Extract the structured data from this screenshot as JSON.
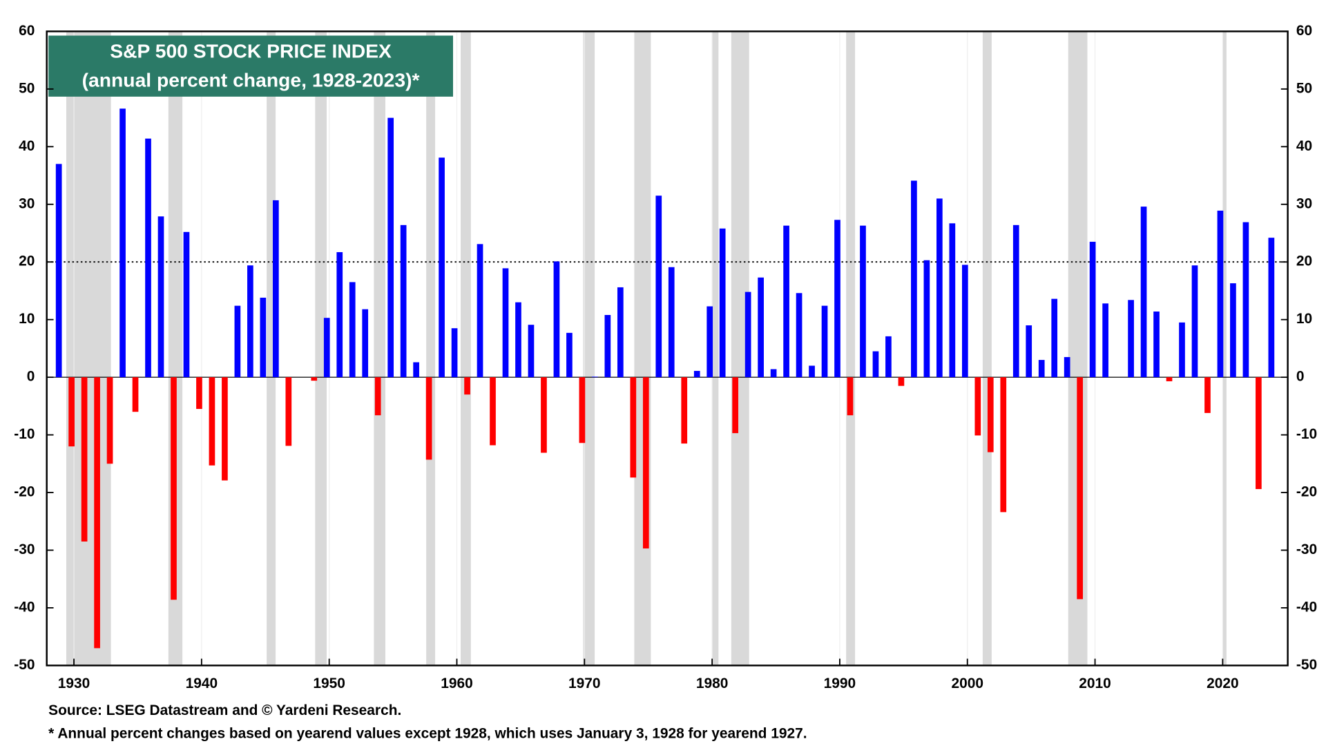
{
  "chart_data": {
    "type": "bar",
    "title": "S&P 500 STOCK PRICE INDEX",
    "subtitle": "(annual percent change, 1928-2023)*",
    "source": "Source: LSEG Datastream and © Yardeni Research.",
    "note": "* Annual percent changes based on yearend values except 1928, which uses January 3, 1928 for yearend 1927.",
    "x": [
      1928,
      1929,
      1930,
      1931,
      1932,
      1933,
      1934,
      1935,
      1936,
      1937,
      1938,
      1939,
      1940,
      1941,
      1942,
      1943,
      1944,
      1945,
      1946,
      1947,
      1948,
      1949,
      1950,
      1951,
      1952,
      1953,
      1954,
      1955,
      1956,
      1957,
      1958,
      1959,
      1960,
      1961,
      1962,
      1963,
      1964,
      1965,
      1966,
      1967,
      1968,
      1969,
      1970,
      1971,
      1972,
      1973,
      1974,
      1975,
      1976,
      1977,
      1978,
      1979,
      1980,
      1981,
      1982,
      1983,
      1984,
      1985,
      1986,
      1987,
      1988,
      1989,
      1990,
      1991,
      1992,
      1993,
      1994,
      1995,
      1996,
      1997,
      1998,
      1999,
      2000,
      2001,
      2002,
      2003,
      2004,
      2005,
      2006,
      2007,
      2008,
      2009,
      2010,
      2011,
      2012,
      2013,
      2014,
      2015,
      2016,
      2017,
      2018,
      2019,
      2020,
      2021,
      2022,
      2023
    ],
    "values": [
      37,
      -12,
      -28.5,
      -47,
      -15,
      46.6,
      -6,
      41.4,
      27.9,
      -38.6,
      25.2,
      -5.5,
      -15.3,
      -17.9,
      12.4,
      19.4,
      13.8,
      30.7,
      -11.9,
      0,
      -0.6,
      10.3,
      21.7,
      16.5,
      11.8,
      -6.6,
      45,
      26.4,
      2.6,
      -14.3,
      38.1,
      8.5,
      -3,
      23.1,
      -11.8,
      18.9,
      13,
      9.1,
      -13.1,
      20.1,
      7.7,
      -11.4,
      0.1,
      10.8,
      15.6,
      -17.4,
      -29.7,
      31.5,
      19.1,
      -11.5,
      1.1,
      12.3,
      25.8,
      -9.7,
      14.8,
      17.3,
      1.4,
      26.3,
      14.6,
      2,
      12.4,
      27.3,
      -6.6,
      26.3,
      4.5,
      7.1,
      -1.5,
      34.1,
      20.3,
      31,
      26.7,
      19.5,
      -10.1,
      -13,
      -23.4,
      26.4,
      9,
      3,
      13.6,
      3.5,
      -38.5,
      23.5,
      12.8,
      0,
      13.4,
      29.6,
      11.4,
      -0.7,
      9.5,
      19.4,
      -6.2,
      28.9,
      16.3,
      26.9,
      -19.4,
      24.2
    ],
    "positive_color": "#0000ff",
    "negative_color": "#ff0000",
    "recessions": [
      [
        1929.4,
        1932.9
      ],
      [
        1937.4,
        1938.5
      ],
      [
        1945.1,
        1945.8
      ],
      [
        1948.9,
        1949.8
      ],
      [
        1953.5,
        1954.4
      ],
      [
        1957.6,
        1958.3
      ],
      [
        1960.3,
        1961.1
      ],
      [
        1969.9,
        1970.8
      ],
      [
        1973.9,
        1975.2
      ],
      [
        1980.0,
        1980.5
      ],
      [
        1981.5,
        1982.9
      ],
      [
        1990.5,
        1991.2
      ],
      [
        2001.2,
        2001.9
      ],
      [
        2007.9,
        2009.4
      ],
      [
        2020.0,
        2020.3
      ]
    ],
    "recession_color": "#d9d9d9",
    "reference_line": 20,
    "xlim": [
      1927.87,
      2025.1
    ],
    "xticks": [
      1930,
      1940,
      1950,
      1960,
      1970,
      1980,
      1990,
      2000,
      2010,
      2020
    ],
    "ylim": [
      -50,
      60
    ],
    "yticks": [
      -50,
      -40,
      -30,
      -20,
      -10,
      0,
      10,
      20,
      30,
      40,
      50,
      60
    ],
    "title_box_color": "#2b7a67"
  }
}
